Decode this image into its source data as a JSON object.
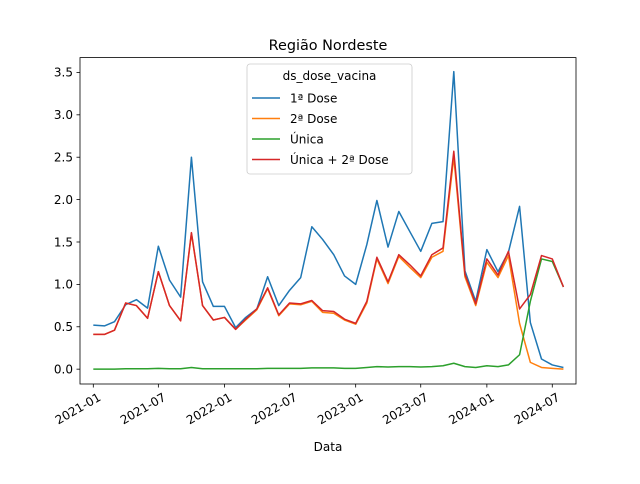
{
  "chart_data": {
    "type": "line",
    "title": "Região Nordeste",
    "xlabel": "Data",
    "ylabel": "",
    "ylim": [
      -0.175,
      3.675
    ],
    "xlim": [
      "2020-11-25",
      "2024-09-05"
    ],
    "grid": false,
    "legend": {
      "title": "ds_dose_vacina",
      "position": "upper-center"
    },
    "x_ticks": [
      {
        "date": "2021-01-01",
        "label": "2021-01"
      },
      {
        "date": "2021-07-01",
        "label": "2021-07"
      },
      {
        "date": "2022-01-01",
        "label": "2022-01"
      },
      {
        "date": "2022-07-01",
        "label": "2022-07"
      },
      {
        "date": "2023-01-01",
        "label": "2023-01"
      },
      {
        "date": "2023-07-01",
        "label": "2023-07"
      },
      {
        "date": "2024-01-01",
        "label": "2024-01"
      },
      {
        "date": "2024-07-01",
        "label": "2024-07"
      }
    ],
    "y_ticks": [
      {
        "value": 0.0,
        "label": "0.0"
      },
      {
        "value": 0.5,
        "label": "0.5"
      },
      {
        "value": 1.0,
        "label": "1.0"
      },
      {
        "value": 1.5,
        "label": "1.5"
      },
      {
        "value": 2.0,
        "label": "2.0"
      },
      {
        "value": 2.5,
        "label": "2.5"
      },
      {
        "value": 3.0,
        "label": "3.0"
      },
      {
        "value": 3.5,
        "label": "3.5"
      }
    ],
    "x": [
      "2021-01",
      "2021-02",
      "2021-03",
      "2021-04",
      "2021-05",
      "2021-06",
      "2021-07",
      "2021-08",
      "2021-09",
      "2021-10",
      "2021-11",
      "2021-12",
      "2022-01",
      "2022-02",
      "2022-03",
      "2022-04",
      "2022-05",
      "2022-06",
      "2022-07",
      "2022-08",
      "2022-09",
      "2022-10",
      "2022-11",
      "2022-12",
      "2023-01",
      "2023-02",
      "2023-03",
      "2023-04",
      "2023-05",
      "2023-06",
      "2023-07",
      "2023-08",
      "2023-09",
      "2023-10",
      "2023-11",
      "2023-12",
      "2024-01",
      "2024-02",
      "2024-03",
      "2024-04",
      "2024-05",
      "2024-06",
      "2024-07",
      "2024-08"
    ],
    "series": [
      {
        "name": "1ª Dose",
        "color": "#1f77b4",
        "values": [
          0.52,
          0.51,
          0.56,
          0.76,
          0.82,
          0.72,
          1.45,
          1.05,
          0.85,
          2.5,
          1.03,
          0.74,
          0.74,
          0.49,
          0.61,
          0.71,
          1.09,
          0.75,
          0.93,
          1.08,
          1.68,
          1.53,
          1.35,
          1.1,
          1.0,
          1.47,
          1.99,
          1.44,
          1.86,
          1.62,
          1.39,
          1.72,
          1.74,
          3.51,
          1.16,
          0.8,
          1.41,
          1.15,
          1.38,
          1.92,
          0.55,
          0.12,
          0.05,
          0.02
        ]
      },
      {
        "name": "2ª Dose",
        "color": "#ff7f0e",
        "values": [
          0.41,
          0.41,
          0.46,
          0.78,
          0.75,
          0.6,
          1.15,
          0.75,
          0.57,
          1.6,
          0.75,
          0.58,
          0.61,
          0.47,
          0.58,
          0.7,
          0.95,
          0.63,
          0.77,
          0.76,
          0.8,
          0.67,
          0.66,
          0.58,
          0.53,
          0.78,
          1.3,
          1.01,
          1.33,
          1.2,
          1.08,
          1.32,
          1.39,
          2.5,
          1.09,
          0.75,
          1.26,
          1.08,
          1.34,
          0.54,
          0.08,
          0.02,
          0.01,
          0.0
        ]
      },
      {
        "name": "Única",
        "color": "#2ca02c",
        "values": [
          0.0,
          0.0,
          0.0,
          0.005,
          0.005,
          0.005,
          0.01,
          0.005,
          0.005,
          0.02,
          0.005,
          0.005,
          0.005,
          0.005,
          0.005,
          0.005,
          0.01,
          0.01,
          0.01,
          0.01,
          0.015,
          0.015,
          0.015,
          0.01,
          0.01,
          0.02,
          0.03,
          0.025,
          0.03,
          0.03,
          0.025,
          0.03,
          0.04,
          0.07,
          0.03,
          0.02,
          0.04,
          0.03,
          0.05,
          0.17,
          0.8,
          1.3,
          1.27,
          0.97
        ]
      },
      {
        "name": "Única + 2ª Dose",
        "color": "#d62728",
        "values": [
          0.41,
          0.41,
          0.46,
          0.78,
          0.75,
          0.6,
          1.15,
          0.75,
          0.57,
          1.61,
          0.75,
          0.58,
          0.61,
          0.47,
          0.59,
          0.71,
          0.96,
          0.64,
          0.78,
          0.77,
          0.81,
          0.69,
          0.68,
          0.59,
          0.54,
          0.8,
          1.32,
          1.03,
          1.35,
          1.23,
          1.1,
          1.35,
          1.43,
          2.57,
          1.12,
          0.77,
          1.3,
          1.11,
          1.39,
          0.71,
          0.88,
          1.34,
          1.3,
          0.97
        ]
      }
    ]
  }
}
